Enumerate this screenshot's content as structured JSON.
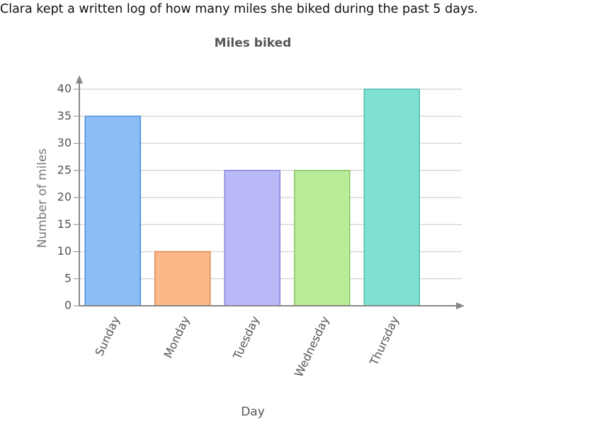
{
  "prompt": "Clara kept a written log of how many miles she biked during the past 5 days.",
  "chart_data": {
    "type": "bar",
    "title": "Miles biked",
    "x_label": "Day",
    "y_label": "Number of miles",
    "categories": [
      "Sunday",
      "Monday",
      "Tuesday",
      "Wednesday",
      "Thursday"
    ],
    "values": [
      35,
      10,
      25,
      25,
      40
    ],
    "colors": [
      "#8cbdf6",
      "#fdb889",
      "#b9b9f8",
      "#b9eb99",
      "#7fdfd2"
    ],
    "edge_colors": [
      "#4a8ee0",
      "#e08a50",
      "#8585e0",
      "#86c466",
      "#4fbfae"
    ],
    "ylim": [
      0,
      40
    ],
    "yticks": [
      0,
      5,
      10,
      15,
      20,
      25,
      30,
      35,
      40
    ],
    "grid": true
  }
}
